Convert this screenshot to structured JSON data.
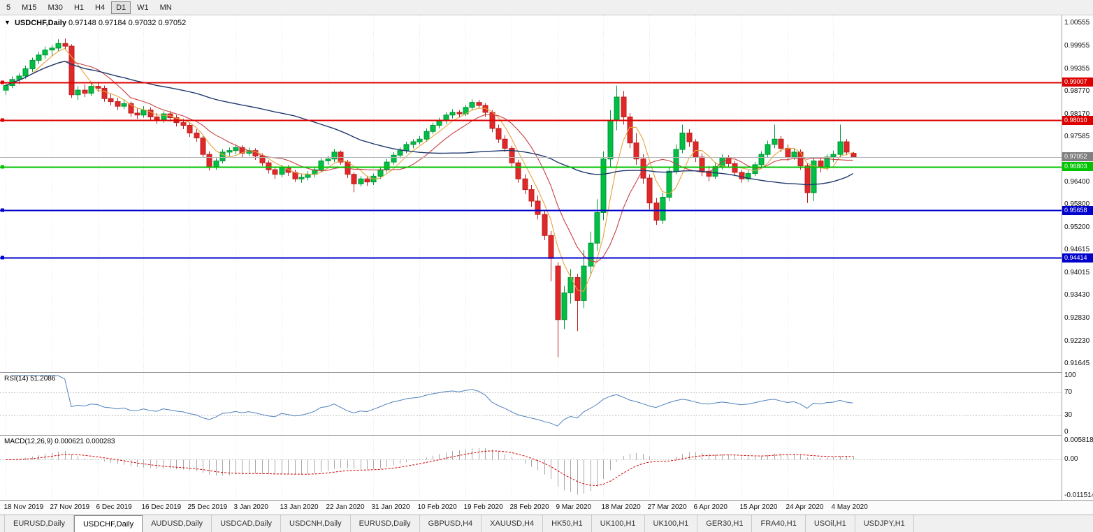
{
  "toolbar": {
    "timeframes": [
      "5",
      "M15",
      "M30",
      "H1",
      "H4",
      "D1",
      "W1",
      "MN"
    ],
    "active": "D1"
  },
  "chart": {
    "title_symbol": "USDCHF,Daily",
    "title_ohlc": "0.97148 0.97184 0.97032 0.97052",
    "price_axis_labels": [
      "1.00555",
      "0.99955",
      "0.99355",
      "0.98770",
      "0.98170",
      "0.97585",
      "0.96400",
      "0.95800",
      "0.95200",
      "0.94615",
      "0.94015",
      "0.93430",
      "0.92830",
      "0.92230",
      "0.91645"
    ],
    "price_scale": {
      "top": 1.00756,
      "bottom": 0.91427
    },
    "current_price": {
      "value": 0.97052,
      "label": "0.97052",
      "color": "#808080"
    },
    "hlines": [
      {
        "value": 0.99007,
        "label": "0.99007",
        "color": "#dd0000"
      },
      {
        "value": 0.9801,
        "label": "0.98010",
        "color": "#dd0000"
      },
      {
        "value": 0.96803,
        "label": "0.96803",
        "color": "#00c400"
      },
      {
        "value": 0.95658,
        "label": "0.95658",
        "color": "#0000cc"
      },
      {
        "value": 0.94414,
        "label": "0.94414",
        "color": "#0000cc"
      }
    ],
    "colors": {
      "bull": "#00bf44",
      "bull_border": "#009636",
      "bear": "#e02828",
      "bear_border": "#bb1f1f",
      "rsi": "#4f81bd",
      "macd_hist": "#a8a8a8",
      "macd_signal": "#d00000",
      "grid": "#e6e6e6",
      "current_line": "#b4b4b4"
    }
  },
  "chart_data": {
    "type": "candlestick",
    "symbol": "USDCHF",
    "timeframe": "Daily",
    "x_label_interval": 7,
    "x_labels": [
      "18 Nov 2019",
      "27 Nov 2019",
      "6 Dec 2019",
      "16 Dec 2019",
      "25 Dec 2019",
      "3 Jan 2020",
      "13 Jan 2020",
      "22 Jan 2020",
      "31 Jan 2020",
      "10 Feb 2020",
      "19 Feb 2020",
      "28 Feb 2020",
      "9 Mar 2020",
      "18 Mar 2020",
      "27 Mar 2020",
      "6 Apr 2020",
      "15 Apr 2020",
      "24 Apr 2020",
      "4 May 2020"
    ],
    "moving_averages": [
      {
        "period": 5,
        "color": "#e8a33d"
      },
      {
        "period": 10,
        "color": "#c84040"
      },
      {
        "period": 45,
        "color": "#1f3a6e"
      }
    ],
    "ohlc": [
      [
        0.988,
        0.9901,
        0.9868,
        0.9892
      ],
      [
        0.9892,
        0.9916,
        0.9885,
        0.9908
      ],
      [
        0.9908,
        0.9925,
        0.9896,
        0.9917
      ],
      [
        0.9917,
        0.9944,
        0.991,
        0.9936
      ],
      [
        0.9936,
        0.9965,
        0.9928,
        0.9958
      ],
      [
        0.9958,
        0.998,
        0.9948,
        0.9972
      ],
      [
        0.9972,
        0.9994,
        0.9962,
        0.9985
      ],
      [
        0.9985,
        0.9998,
        0.997,
        0.999
      ],
      [
        0.999,
        1.0013,
        0.9982,
        1.0002
      ],
      [
        1.0002,
        1.0015,
        0.9985,
        0.9995
      ],
      [
        0.9995,
        1.0,
        0.986,
        0.9868
      ],
      [
        0.9868,
        0.989,
        0.9855,
        0.988
      ],
      [
        0.988,
        0.9895,
        0.9862,
        0.9872
      ],
      [
        0.9872,
        0.9898,
        0.9865,
        0.989
      ],
      [
        0.989,
        0.9902,
        0.9875,
        0.9885
      ],
      [
        0.9885,
        0.9892,
        0.985,
        0.9858
      ],
      [
        0.9858,
        0.987,
        0.984,
        0.985
      ],
      [
        0.985,
        0.986,
        0.9828,
        0.9838
      ],
      [
        0.9838,
        0.9856,
        0.983,
        0.9845
      ],
      [
        0.9845,
        0.985,
        0.981,
        0.982
      ],
      [
        0.982,
        0.9832,
        0.9805,
        0.9815
      ],
      [
        0.9815,
        0.9838,
        0.9808,
        0.9828
      ],
      [
        0.9828,
        0.9835,
        0.98,
        0.981
      ],
      [
        0.981,
        0.982,
        0.9792,
        0.9802
      ],
      [
        0.9802,
        0.9825,
        0.9795,
        0.9818
      ],
      [
        0.9818,
        0.9826,
        0.9798,
        0.9808
      ],
      [
        0.9808,
        0.9815,
        0.9785,
        0.9795
      ],
      [
        0.9795,
        0.9805,
        0.9778,
        0.9788
      ],
      [
        0.9788,
        0.9795,
        0.9758,
        0.9768
      ],
      [
        0.9768,
        0.9778,
        0.9745,
        0.9755
      ],
      [
        0.9755,
        0.976,
        0.9705,
        0.9712
      ],
      [
        0.9712,
        0.972,
        0.967,
        0.968
      ],
      [
        0.968,
        0.9702,
        0.9672,
        0.9695
      ],
      [
        0.9695,
        0.9726,
        0.9688,
        0.9718
      ],
      [
        0.9718,
        0.973,
        0.9708,
        0.9722
      ],
      [
        0.9722,
        0.9738,
        0.9712,
        0.973
      ],
      [
        0.973,
        0.9736,
        0.9705,
        0.9715
      ],
      [
        0.9715,
        0.973,
        0.9708,
        0.9722
      ],
      [
        0.9722,
        0.9728,
        0.9698,
        0.9708
      ],
      [
        0.9708,
        0.9715,
        0.9682,
        0.969
      ],
      [
        0.969,
        0.9696,
        0.9662,
        0.9672
      ],
      [
        0.9672,
        0.968,
        0.9648,
        0.966
      ],
      [
        0.966,
        0.9685,
        0.9652,
        0.9678
      ],
      [
        0.9678,
        0.9684,
        0.9656,
        0.9665
      ],
      [
        0.9665,
        0.9672,
        0.964,
        0.9648
      ],
      [
        0.9648,
        0.9662,
        0.9638,
        0.9652
      ],
      [
        0.9652,
        0.9668,
        0.9644,
        0.966
      ],
      [
        0.966,
        0.968,
        0.9652,
        0.9672
      ],
      [
        0.9672,
        0.9702,
        0.9665,
        0.9695
      ],
      [
        0.9695,
        0.9708,
        0.9685,
        0.97
      ],
      [
        0.97,
        0.9726,
        0.9692,
        0.9718
      ],
      [
        0.9718,
        0.9722,
        0.9685,
        0.9692
      ],
      [
        0.9692,
        0.9698,
        0.965,
        0.966
      ],
      [
        0.966,
        0.9665,
        0.9613,
        0.9635
      ],
      [
        0.9635,
        0.9655,
        0.9628,
        0.9648
      ],
      [
        0.9648,
        0.9656,
        0.963,
        0.964
      ],
      [
        0.964,
        0.9662,
        0.9632,
        0.9655
      ],
      [
        0.9655,
        0.968,
        0.9648,
        0.9672
      ],
      [
        0.9672,
        0.97,
        0.9665,
        0.9692
      ],
      [
        0.9692,
        0.9718,
        0.9685,
        0.971
      ],
      [
        0.971,
        0.973,
        0.9702,
        0.9722
      ],
      [
        0.9722,
        0.9745,
        0.9715,
        0.9738
      ],
      [
        0.9738,
        0.9752,
        0.9728,
        0.9745
      ],
      [
        0.9745,
        0.976,
        0.9738,
        0.9752
      ],
      [
        0.9752,
        0.978,
        0.9745,
        0.9772
      ],
      [
        0.9772,
        0.9795,
        0.9765,
        0.9788
      ],
      [
        0.9788,
        0.9808,
        0.978,
        0.98
      ],
      [
        0.98,
        0.9822,
        0.9792,
        0.9815
      ],
      [
        0.9815,
        0.983,
        0.9806,
        0.9822
      ],
      [
        0.9822,
        0.9828,
        0.9808,
        0.9818
      ],
      [
        0.9818,
        0.9842,
        0.9812,
        0.9835
      ],
      [
        0.9835,
        0.9856,
        0.9828,
        0.9848
      ],
      [
        0.9848,
        0.9855,
        0.9832,
        0.984
      ],
      [
        0.984,
        0.9846,
        0.981,
        0.9822
      ],
      [
        0.9822,
        0.9828,
        0.977,
        0.978
      ],
      [
        0.978,
        0.979,
        0.9742,
        0.9752
      ],
      [
        0.9752,
        0.9762,
        0.9718,
        0.9728
      ],
      [
        0.9728,
        0.9735,
        0.968,
        0.969
      ],
      [
        0.969,
        0.9698,
        0.9638,
        0.9648
      ],
      [
        0.9648,
        0.966,
        0.9608,
        0.962
      ],
      [
        0.962,
        0.9632,
        0.9575,
        0.959
      ],
      [
        0.959,
        0.9605,
        0.9542,
        0.9555
      ],
      [
        0.9555,
        0.9565,
        0.9488,
        0.95
      ],
      [
        0.95,
        0.9512,
        0.938,
        0.944
      ],
      [
        0.942,
        0.943,
        0.9182,
        0.928
      ],
      [
        0.928,
        0.9368,
        0.9255,
        0.935
      ],
      [
        0.935,
        0.9412,
        0.9322,
        0.939
      ],
      [
        0.939,
        0.94,
        0.925,
        0.933
      ],
      [
        0.933,
        0.9462,
        0.931,
        0.942
      ],
      [
        0.942,
        0.951,
        0.9395,
        0.948
      ],
      [
        0.948,
        0.9595,
        0.946,
        0.956
      ],
      [
        0.956,
        0.972,
        0.954,
        0.97
      ],
      [
        0.97,
        0.9828,
        0.968,
        0.98
      ],
      [
        0.98,
        0.9892,
        0.9775,
        0.9862
      ],
      [
        0.9862,
        0.9878,
        0.979,
        0.981
      ],
      [
        0.981,
        0.982,
        0.9728,
        0.9742
      ],
      [
        0.9742,
        0.9768,
        0.9685,
        0.97
      ],
      [
        0.97,
        0.9712,
        0.9635,
        0.965
      ],
      [
        0.965,
        0.966,
        0.9568,
        0.9585
      ],
      [
        0.9585,
        0.9598,
        0.9528,
        0.954
      ],
      [
        0.954,
        0.9612,
        0.953,
        0.96
      ],
      [
        0.96,
        0.968,
        0.959,
        0.9668
      ],
      [
        0.9668,
        0.9738,
        0.966,
        0.9725
      ],
      [
        0.9725,
        0.979,
        0.9715,
        0.9768
      ],
      [
        0.9768,
        0.9778,
        0.9732,
        0.9745
      ],
      [
        0.9745,
        0.9752,
        0.9692,
        0.9705
      ],
      [
        0.9705,
        0.9715,
        0.9655,
        0.9668
      ],
      [
        0.9668,
        0.9682,
        0.9642,
        0.9655
      ],
      [
        0.9655,
        0.9692,
        0.9648,
        0.968
      ],
      [
        0.968,
        0.9712,
        0.9672,
        0.9702
      ],
      [
        0.9702,
        0.971,
        0.9678,
        0.9688
      ],
      [
        0.9688,
        0.9695,
        0.9655,
        0.9665
      ],
      [
        0.9665,
        0.9672,
        0.9638,
        0.9648
      ],
      [
        0.9648,
        0.967,
        0.964,
        0.9662
      ],
      [
        0.9662,
        0.9692,
        0.9655,
        0.9685
      ],
      [
        0.9685,
        0.972,
        0.9678,
        0.9712
      ],
      [
        0.9712,
        0.9748,
        0.9705,
        0.9738
      ],
      [
        0.9738,
        0.979,
        0.9728,
        0.9752
      ],
      [
        0.9752,
        0.976,
        0.9718,
        0.9728
      ],
      [
        0.9728,
        0.9738,
        0.9695,
        0.9705
      ],
      [
        0.9705,
        0.9728,
        0.9698,
        0.9718
      ],
      [
        0.9718,
        0.9725,
        0.9672,
        0.9682
      ],
      [
        0.9682,
        0.969,
        0.9585,
        0.9612
      ],
      [
        0.9612,
        0.9705,
        0.959,
        0.9695
      ],
      [
        0.9695,
        0.9702,
        0.9665,
        0.9678
      ],
      [
        0.9678,
        0.9712,
        0.967,
        0.9705
      ],
      [
        0.9705,
        0.9722,
        0.9692,
        0.9712
      ],
      [
        0.9712,
        0.979,
        0.9705,
        0.9745
      ],
      [
        0.9745,
        0.9752,
        0.971,
        0.9718
      ],
      [
        0.97148,
        0.97184,
        0.97032,
        0.97052
      ]
    ]
  },
  "rsi": {
    "label": "RSI(14) 51.2086",
    "period": 14,
    "current_value": 51.2086,
    "levels": [
      70,
      30
    ],
    "axis_labels": [
      {
        "text": "100",
        "value": 100
      },
      {
        "text": "70",
        "value": 70
      },
      {
        "text": "30",
        "value": 30
      },
      {
        "text": "0",
        "value": 0
      }
    ],
    "scale": {
      "top": 104.9,
      "bottom": -4.9
    }
  },
  "macd": {
    "label": "MACD(12,26,9) 0.000621 0.000283",
    "fast": 12,
    "slow": 26,
    "signal": 9,
    "values": {
      "macd": 0.000621,
      "signal": 0.000283
    },
    "axis_labels": [
      {
        "text": "0.005818",
        "value": 0.005818
      },
      {
        "text": "0.00",
        "value": 0
      },
      {
        "text": "-0.011514",
        "value": -0.011514
      }
    ],
    "scale": {
      "top": 0.00728,
      "bottom": -0.01214
    }
  },
  "tabbar": {
    "active_index": 1,
    "tabs": [
      {
        "label": "EURUSD,Daily"
      },
      {
        "label": "USDCHF,Daily"
      },
      {
        "label": "AUDUSD,Daily"
      },
      {
        "label": "USDCAD,Daily"
      },
      {
        "label": "USDCNH,Daily"
      },
      {
        "label": "EURUSD,Daily"
      },
      {
        "label": "GBPUSD,H4"
      },
      {
        "label": "XAUUSD,H4"
      },
      {
        "label": "HK50,H1"
      },
      {
        "label": "UK100,H1"
      },
      {
        "label": "UK100,H1"
      },
      {
        "label": "GER30,H1"
      },
      {
        "label": "FRA40,H1"
      },
      {
        "label": "USOil,H1"
      },
      {
        "label": "USDJPY,H1"
      }
    ]
  }
}
